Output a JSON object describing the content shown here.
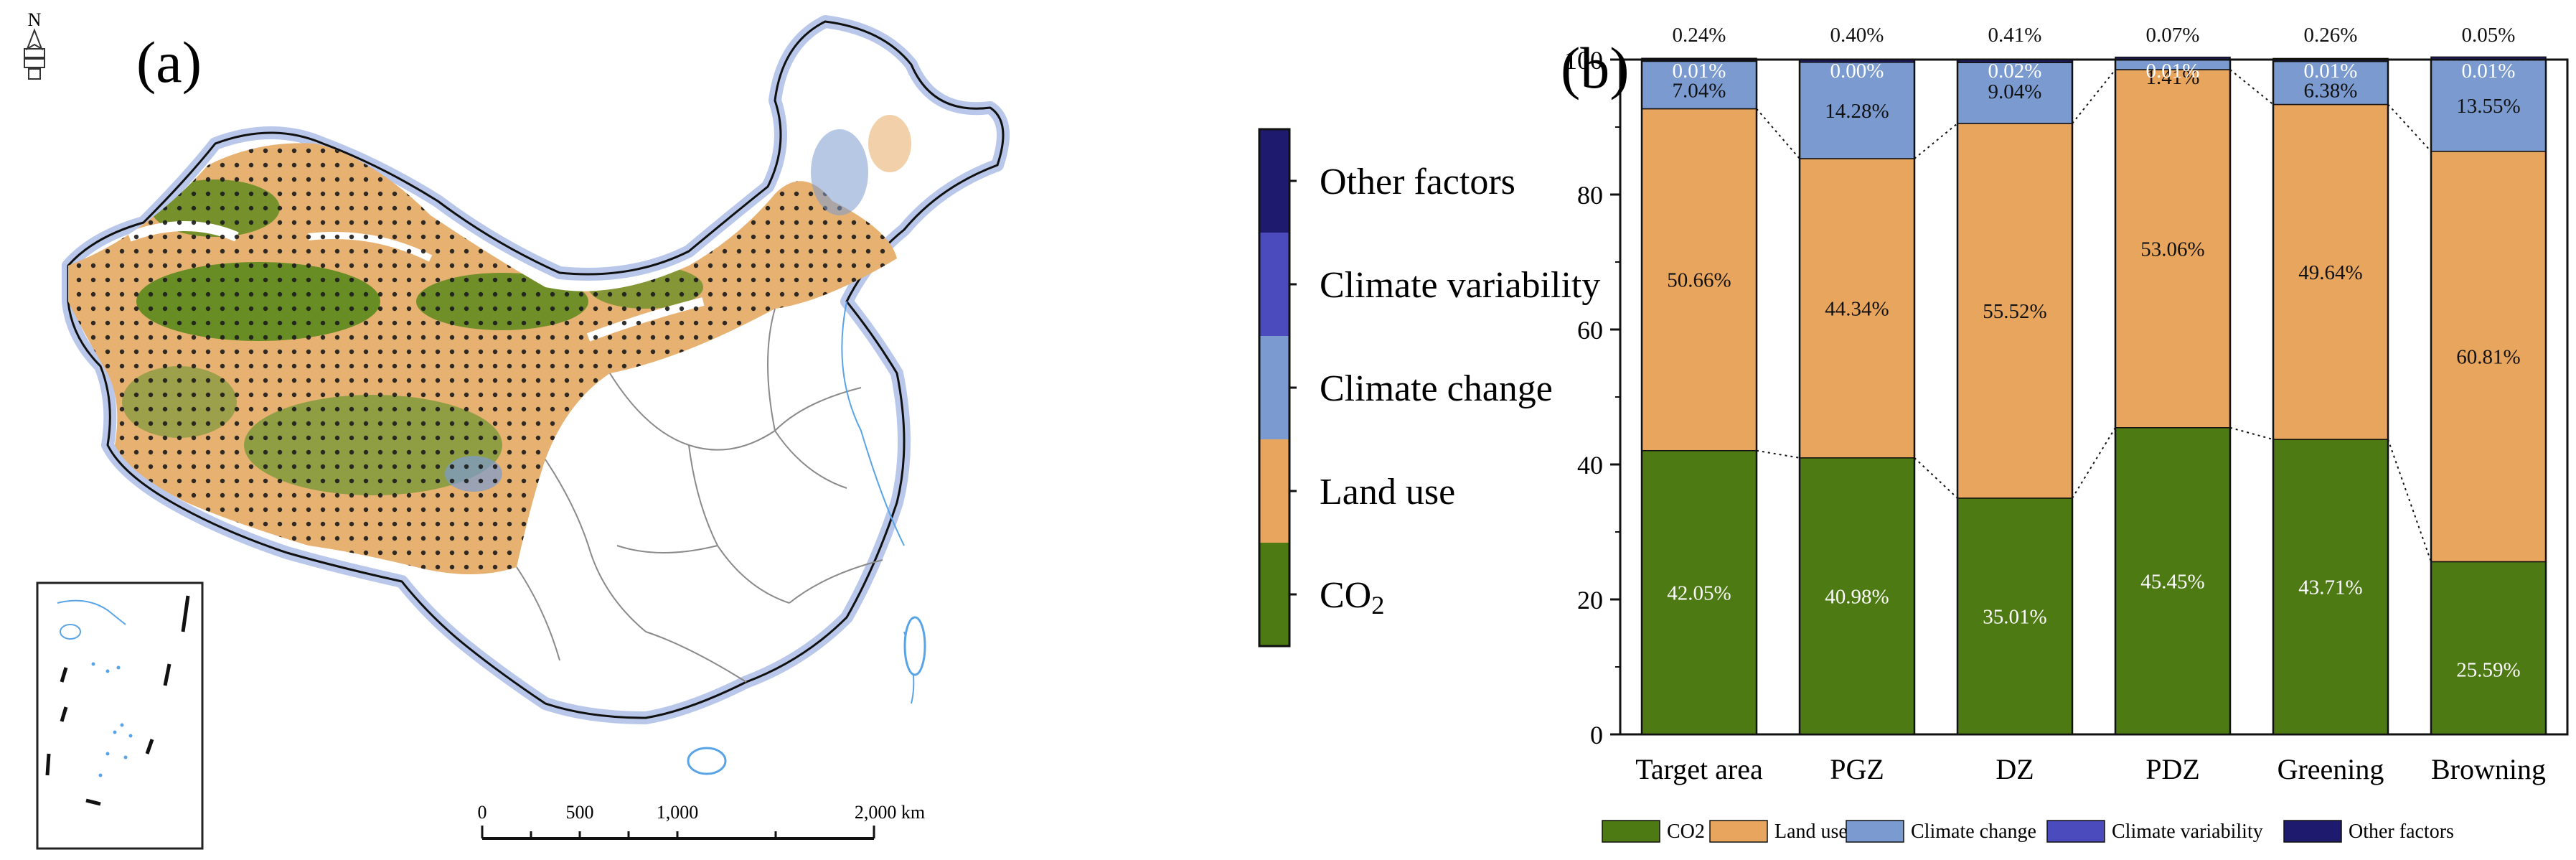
{
  "map": {
    "panel_label": "(a)",
    "north_label": "N",
    "scale_ticks": [
      "0",
      "500",
      "1,000",
      "2,000 km"
    ]
  },
  "legend": {
    "items": [
      {
        "label": "Other factors",
        "color": "#1e1a6e"
      },
      {
        "label": "Climate variability",
        "color": "#4b4bbd"
      },
      {
        "label": "Climate change",
        "color": "#7b9bd0"
      },
      {
        "label": "Land use",
        "color": "#e8a55e"
      },
      {
        "label": "CO2",
        "color": "#4d7a12"
      }
    ]
  },
  "chart_data": {
    "type": "bar",
    "stacked": true,
    "panel_label": "(b)",
    "categories": [
      "Target area",
      "PGZ",
      "DZ",
      "PDZ",
      "Greening",
      "Browning"
    ],
    "ylim": [
      0,
      100
    ],
    "yticks": [
      0,
      20,
      40,
      60,
      80,
      100
    ],
    "grid": false,
    "legend_position": "bottom",
    "series": [
      {
        "name": "CO2",
        "color": "#4d7a12",
        "values": [
          42.05,
          40.98,
          35.01,
          45.45,
          43.71,
          25.59
        ],
        "labels": [
          "42.05%",
          "40.98%",
          "35.01%",
          "45.45%",
          "43.71%",
          "25.59%"
        ]
      },
      {
        "name": "Land use",
        "color": "#e8a55e",
        "values": [
          50.66,
          44.34,
          55.52,
          53.06,
          49.64,
          60.81
        ],
        "labels": [
          "50.66%",
          "44.34%",
          "55.52%",
          "53.06%",
          "49.64%",
          "60.81%"
        ]
      },
      {
        "name": "Climate change",
        "color": "#7b9bd0",
        "values": [
          7.04,
          14.28,
          9.04,
          1.41,
          6.38,
          13.55
        ],
        "labels": [
          "7.04%",
          "14.28%",
          "9.04%",
          "1.41%",
          "6.38%",
          "13.55%"
        ]
      },
      {
        "name": "Climate variability",
        "color": "#4b4bbd",
        "values": [
          0.01,
          0.0,
          0.02,
          0.01,
          0.01,
          0.01
        ],
        "labels": [
          "0.01%",
          "0.00%",
          "0.02%",
          "0.01%",
          "0.01%",
          "0.01%"
        ]
      },
      {
        "name": "Other factors",
        "color": "#1e1a6e",
        "values": [
          0.24,
          0.4,
          0.41,
          0.07,
          0.26,
          0.05
        ],
        "labels": [
          "0.24%",
          "0.40%",
          "0.41%",
          "0.07%",
          "0.26%",
          "0.05%"
        ]
      }
    ]
  }
}
